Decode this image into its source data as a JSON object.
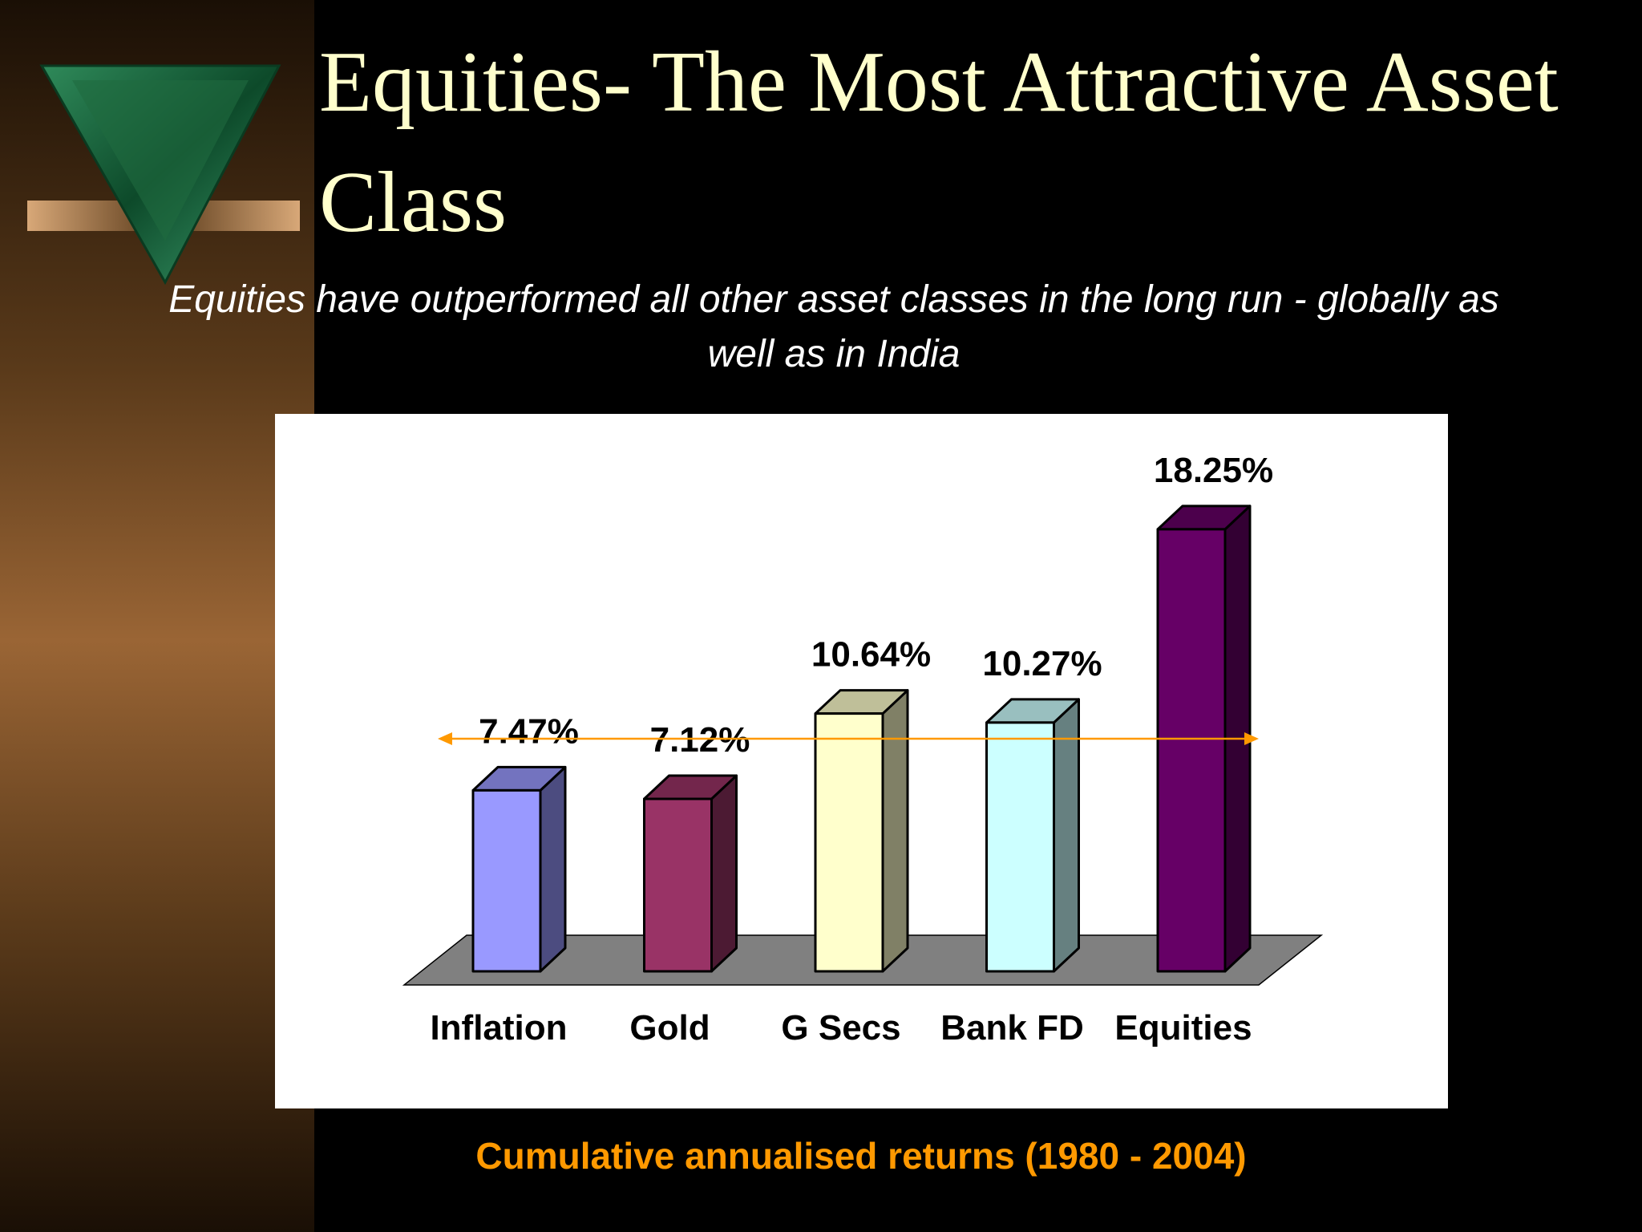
{
  "chart_data": {
    "type": "bar",
    "title": "Equities- The Most Attractive Asset Class",
    "subtitle": "Equities have outperformed all other asset classes in the long run - globally as well as in India",
    "categories": [
      "Inflation",
      "Gold",
      "G Secs",
      "Bank FD",
      "Equities"
    ],
    "values": [
      7.47,
      7.12,
      10.64,
      10.27,
      18.25
    ],
    "value_labels": [
      "7.47%",
      "7.12%",
      "10.64%",
      "10.27%",
      "18.25%"
    ],
    "colors": [
      "#9999ff",
      "#993366",
      "#ffffcc",
      "#ccffff",
      "#660066"
    ],
    "note": "Cumulative annualised returns (1980 - 2004)"
  }
}
